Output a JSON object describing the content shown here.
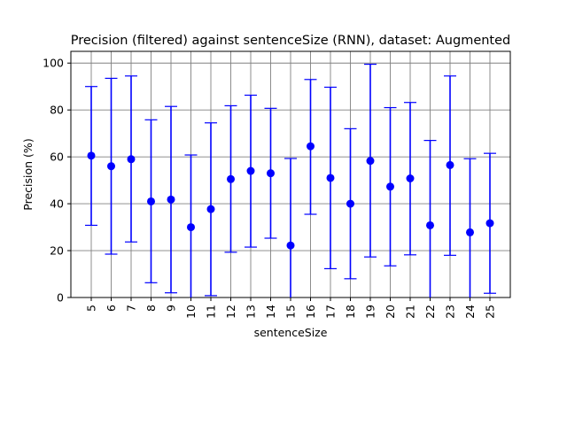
{
  "chart_data": {
    "type": "scatter",
    "title": "Precision (filtered) against sentenceSize (RNN), dataset: Augmented",
    "xlabel": "sentenceSize",
    "ylabel": "Precision (%)",
    "ylim": [
      0,
      105
    ],
    "yticks": [
      0,
      20,
      40,
      60,
      80,
      100
    ],
    "grid": true,
    "color": "#0000ff",
    "categories": [
      "5",
      "6",
      "7",
      "8",
      "9",
      "10",
      "11",
      "12",
      "13",
      "14",
      "15",
      "16",
      "17",
      "18",
      "19",
      "20",
      "21",
      "22",
      "23",
      "24",
      "25"
    ],
    "series": [
      {
        "values": [
          60.5,
          56.0,
          59.0,
          41.0,
          41.8,
          30.0,
          37.7,
          50.5,
          54.0,
          53.0,
          22.2,
          64.5,
          51.0,
          40.0,
          58.3,
          47.3,
          50.8,
          30.8,
          56.5,
          27.8,
          31.7
        ],
        "err_low": [
          30.8,
          18.5,
          23.7,
          6.3,
          2.0,
          0.0,
          0.8,
          19.3,
          21.5,
          25.3,
          0.0,
          35.5,
          12.3,
          8.0,
          17.3,
          13.5,
          18.2,
          0.0,
          18.0,
          0.0,
          1.8
        ],
        "err_high": [
          90.0,
          93.5,
          94.5,
          75.8,
          81.5,
          60.8,
          74.5,
          81.8,
          86.3,
          80.7,
          59.3,
          93.0,
          89.7,
          72.0,
          99.5,
          81.0,
          83.2,
          67.0,
          94.5,
          59.2,
          61.5
        ]
      }
    ]
  }
}
